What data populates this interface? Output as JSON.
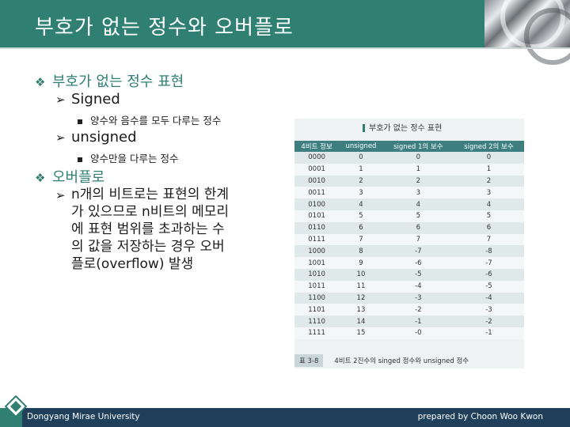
{
  "header": {
    "title": "부호가 없는 정수와 오버플로"
  },
  "content": {
    "item1": {
      "bullet": "❖",
      "text": "부호가 없는 정수 표현"
    },
    "item1_sub1": {
      "arrow": "➢",
      "text": "Signed"
    },
    "item1_sub1_detail": "양수와 음수를 모두 다루는 정수",
    "item1_sub2": {
      "arrow": "➢",
      "text": "unsigned"
    },
    "item1_sub2_detail": "양수만을 다루는 정수",
    "item2": {
      "bullet": "❖",
      "text": "오버플로"
    },
    "item2_sub1": {
      "arrow": "➢",
      "lines": [
        "n개의 비트로는 표현의 한계",
        "가 있으므로 n비트의 메모리",
        "에 표현 범위를 초과하는 수",
        "의 값을 저장하는 경우 오버",
        "플로(overflow) 발생"
      ]
    }
  },
  "figure": {
    "title": "부호가 없는 정수 표현",
    "caption_number": "표 3-8",
    "caption_text": "4비트 2진수의 singed 정수와 unsigned 정수",
    "headers": [
      "4비트 정보",
      "unsigned",
      "signed 1의 보수",
      "signed 2의 보수"
    ],
    "rows": [
      [
        "0000",
        "0",
        "0",
        "0"
      ],
      [
        "0001",
        "1",
        "1",
        "1"
      ],
      [
        "0010",
        "2",
        "2",
        "2"
      ],
      [
        "0011",
        "3",
        "3",
        "3"
      ],
      [
        "0100",
        "4",
        "4",
        "4"
      ],
      [
        "0101",
        "5",
        "5",
        "5"
      ],
      [
        "0110",
        "6",
        "6",
        "6"
      ],
      [
        "0111",
        "7",
        "7",
        "7"
      ],
      [
        "1000",
        "8",
        "-7",
        "-8"
      ],
      [
        "1001",
        "9",
        "-6",
        "-7"
      ],
      [
        "1010",
        "10",
        "-5",
        "-6"
      ],
      [
        "1011",
        "11",
        "-4",
        "-5"
      ],
      [
        "1100",
        "12",
        "-3",
        "-4"
      ],
      [
        "1101",
        "13",
        "-2",
        "-3"
      ],
      [
        "1110",
        "14",
        "-1",
        "-2"
      ],
      [
        "1111",
        "15",
        "-0",
        "-1"
      ]
    ]
  },
  "footer": {
    "left": "Dongyang Mirae University",
    "right": "prepared by Choon Woo Kwon"
  },
  "colors": {
    "accent": "#2f7f73",
    "footer": "#1f3f5a",
    "table_header": "#3d7f80"
  }
}
